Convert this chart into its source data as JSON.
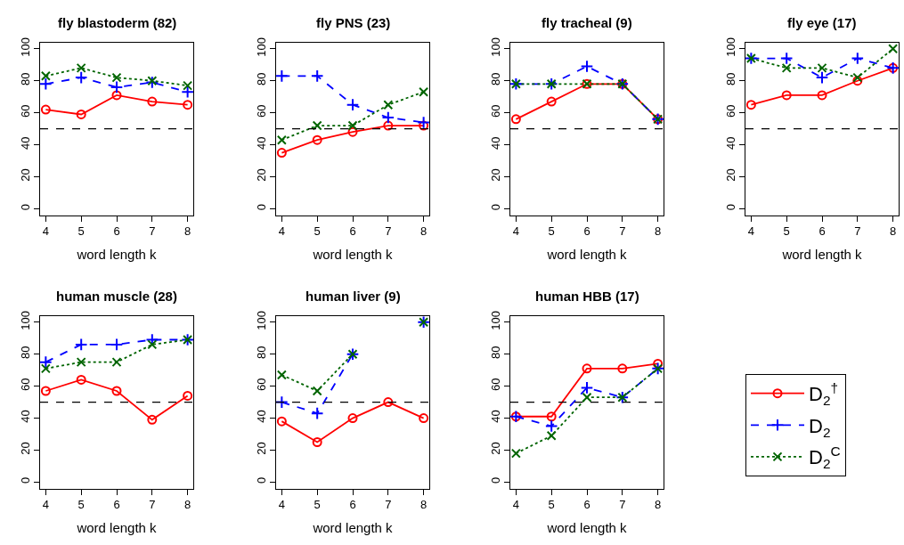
{
  "chart_data": [
    {
      "type": "line",
      "title": "fly blastoderm (82)",
      "xlabel": "word length k",
      "x": [
        4,
        5,
        6,
        7,
        8
      ],
      "xlim": [
        3.84,
        8.16
      ],
      "xticks": [
        4,
        5,
        6,
        7,
        8
      ],
      "ylim": [
        -4,
        104
      ],
      "yticks": [
        0,
        20,
        40,
        60,
        80,
        100
      ],
      "legend": "bottom right",
      "ref_lines": [
        {
          "axis": "y",
          "value": 50,
          "color": "#000000",
          "line_style": "dashed"
        }
      ],
      "series": [
        {
          "name": "D$_{2}$$^{†}$",
          "color": "#ff0000",
          "marker": "circle",
          "line_style": "solid",
          "values": [
            62,
            59,
            71,
            67,
            65
          ]
        },
        {
          "name": "D$_{2}$",
          "color": "#0000ff",
          "marker": "cross",
          "line_style": "dashed",
          "values": [
            78,
            82,
            76,
            79,
            73
          ]
        },
        {
          "name": "D$_{2}$$^{C}$",
          "color": "#006400",
          "marker": "x",
          "line_style": "dotted",
          "values": [
            83,
            88,
            82,
            80,
            77
          ]
        }
      ]
    },
    {
      "type": "line",
      "title": "fly PNS (23)",
      "xlabel": "word length k",
      "x": [
        4,
        5,
        6,
        7,
        8
      ],
      "xlim": [
        3.84,
        8.16
      ],
      "xticks": [
        4,
        5,
        6,
        7,
        8
      ],
      "ylim": [
        -4,
        104
      ],
      "yticks": [
        0,
        20,
        40,
        60,
        80,
        100
      ],
      "ref_lines": [
        {
          "axis": "y",
          "value": 50,
          "color": "#000000",
          "line_style": "dashed"
        }
      ],
      "series": [
        {
          "name": "D$_{2}$$^{†}$",
          "color": "#ff0000",
          "marker": "circle",
          "line_style": "solid",
          "values": [
            35,
            43,
            48,
            52,
            52
          ]
        },
        {
          "name": "D$_{2}$",
          "color": "#0000ff",
          "marker": "cross",
          "line_style": "dashed",
          "values": [
            83,
            83,
            65,
            57,
            54
          ]
        },
        {
          "name": "D$_{2}$$^{C}$",
          "color": "#006400",
          "marker": "x",
          "line_style": "dotted",
          "values": [
            43,
            52,
            52,
            65,
            73
          ]
        }
      ]
    },
    {
      "type": "line",
      "title": "fly tracheal (9)",
      "xlabel": "word length k",
      "x": [
        4,
        5,
        6,
        7,
        8
      ],
      "xlim": [
        3.84,
        8.16
      ],
      "xticks": [
        4,
        5,
        6,
        7,
        8
      ],
      "ylim": [
        -4,
        104
      ],
      "yticks": [
        0,
        20,
        40,
        60,
        80,
        100
      ],
      "ref_lines": [
        {
          "axis": "y",
          "value": 50,
          "color": "#000000",
          "line_style": "dashed"
        }
      ],
      "series": [
        {
          "name": "D$_{2}$$^{†}$",
          "color": "#ff0000",
          "marker": "circle",
          "line_style": "solid",
          "values": [
            56,
            67,
            78,
            78,
            56
          ]
        },
        {
          "name": "D$_{2}$",
          "color": "#0000ff",
          "marker": "cross",
          "line_style": "dashed",
          "values": [
            78,
            78,
            89,
            78,
            56
          ]
        },
        {
          "name": "D$_{2}$$^{C}$",
          "color": "#006400",
          "marker": "x",
          "line_style": "dotted",
          "values": [
            78,
            78,
            78,
            78,
            56
          ]
        }
      ]
    },
    {
      "type": "line",
      "title": "fly eye (17)",
      "xlabel": "word length k",
      "x": [
        4,
        5,
        6,
        7,
        8
      ],
      "xlim": [
        3.84,
        8.16
      ],
      "xticks": [
        4,
        5,
        6,
        7,
        8
      ],
      "ylim": [
        -4,
        104
      ],
      "yticks": [
        0,
        20,
        40,
        60,
        80,
        100
      ],
      "ref_lines": [
        {
          "axis": "y",
          "value": 50,
          "color": "#000000",
          "line_style": "dashed"
        }
      ],
      "series": [
        {
          "name": "D$_{2}$$^{†}$",
          "color": "#ff0000",
          "marker": "circle",
          "line_style": "solid",
          "values": [
            65,
            71,
            71,
            80,
            88
          ]
        },
        {
          "name": "D$_{2}$",
          "color": "#0000ff",
          "marker": "cross",
          "line_style": "dashed",
          "values": [
            94,
            94,
            82,
            94,
            88
          ]
        },
        {
          "name": "D$_{2}$$^{C}$",
          "color": "#006400",
          "marker": "x",
          "line_style": "dotted",
          "values": [
            94,
            88,
            88,
            82,
            100
          ]
        }
      ]
    },
    {
      "type": "line",
      "title": "human muscle (28)",
      "xlabel": "word length k",
      "x": [
        4,
        5,
        6,
        7,
        8
      ],
      "xlim": [
        3.84,
        8.16
      ],
      "xticks": [
        4,
        5,
        6,
        7,
        8
      ],
      "ylim": [
        -4,
        104
      ],
      "yticks": [
        0,
        20,
        40,
        60,
        80,
        100
      ],
      "ref_lines": [
        {
          "axis": "y",
          "value": 50,
          "color": "#000000",
          "line_style": "dashed"
        }
      ],
      "series": [
        {
          "name": "D$_{2}$$^{†}$",
          "color": "#ff0000",
          "marker": "circle",
          "line_style": "solid",
          "values": [
            57,
            64,
            57,
            39,
            54
          ]
        },
        {
          "name": "D$_{2}$",
          "color": "#0000ff",
          "marker": "cross",
          "line_style": "dashed",
          "values": [
            75,
            86,
            86,
            89,
            89
          ]
        },
        {
          "name": "D$_{2}$$^{C}$",
          "color": "#006400",
          "marker": "x",
          "line_style": "dotted",
          "values": [
            71,
            75,
            75,
            86,
            89
          ]
        }
      ]
    },
    {
      "type": "line",
      "title": "human liver (9)",
      "xlabel": "word length k",
      "x": [
        4,
        5,
        6,
        7,
        8
      ],
      "xlim": [
        3.84,
        8.16
      ],
      "xticks": [
        4,
        5,
        6,
        7,
        8
      ],
      "ylim": [
        -4,
        104
      ],
      "yticks": [
        0,
        20,
        40,
        60,
        80,
        100
      ],
      "ref_lines": [
        {
          "axis": "y",
          "value": 50,
          "color": "#000000",
          "line_style": "dashed"
        }
      ],
      "series": [
        {
          "name": "D$_{2}$$^{†}$",
          "color": "#ff0000",
          "marker": "circle",
          "line_style": "solid",
          "values": [
            38,
            25,
            40,
            50,
            40
          ]
        },
        {
          "name": "D$_{2}$",
          "color": "#0000ff",
          "marker": "cross",
          "line_style": "dashed",
          "values": [
            50,
            43,
            80,
            null,
            100
          ]
        },
        {
          "name": "D$_{2}$$^{C}$",
          "color": "#006400",
          "marker": "x",
          "line_style": "dotted",
          "values": [
            67,
            57,
            80,
            null,
            100
          ]
        }
      ]
    },
    {
      "type": "line",
      "title": "human HBB (17)",
      "xlabel": "word length k",
      "x": [
        4,
        5,
        6,
        7,
        8
      ],
      "xlim": [
        3.84,
        8.16
      ],
      "xticks": [
        4,
        5,
        6,
        7,
        8
      ],
      "ylim": [
        -4,
        104
      ],
      "yticks": [
        0,
        20,
        40,
        60,
        80,
        100
      ],
      "ref_lines": [
        {
          "axis": "y",
          "value": 50,
          "color": "#000000",
          "line_style": "dashed"
        }
      ],
      "series": [
        {
          "name": "D$_{2}$$^{†}$",
          "color": "#ff0000",
          "marker": "circle",
          "line_style": "solid",
          "values": [
            41,
            41,
            71,
            71,
            74
          ]
        },
        {
          "name": "D$_{2}$",
          "color": "#0000ff",
          "marker": "cross",
          "line_style": "dashed",
          "values": [
            41,
            35,
            59,
            53,
            71
          ]
        },
        {
          "name": "D$_{2}$$^{C}$",
          "color": "#006400",
          "marker": "x",
          "line_style": "dotted",
          "values": [
            18,
            29,
            53,
            53,
            71
          ]
        }
      ]
    }
  ]
}
